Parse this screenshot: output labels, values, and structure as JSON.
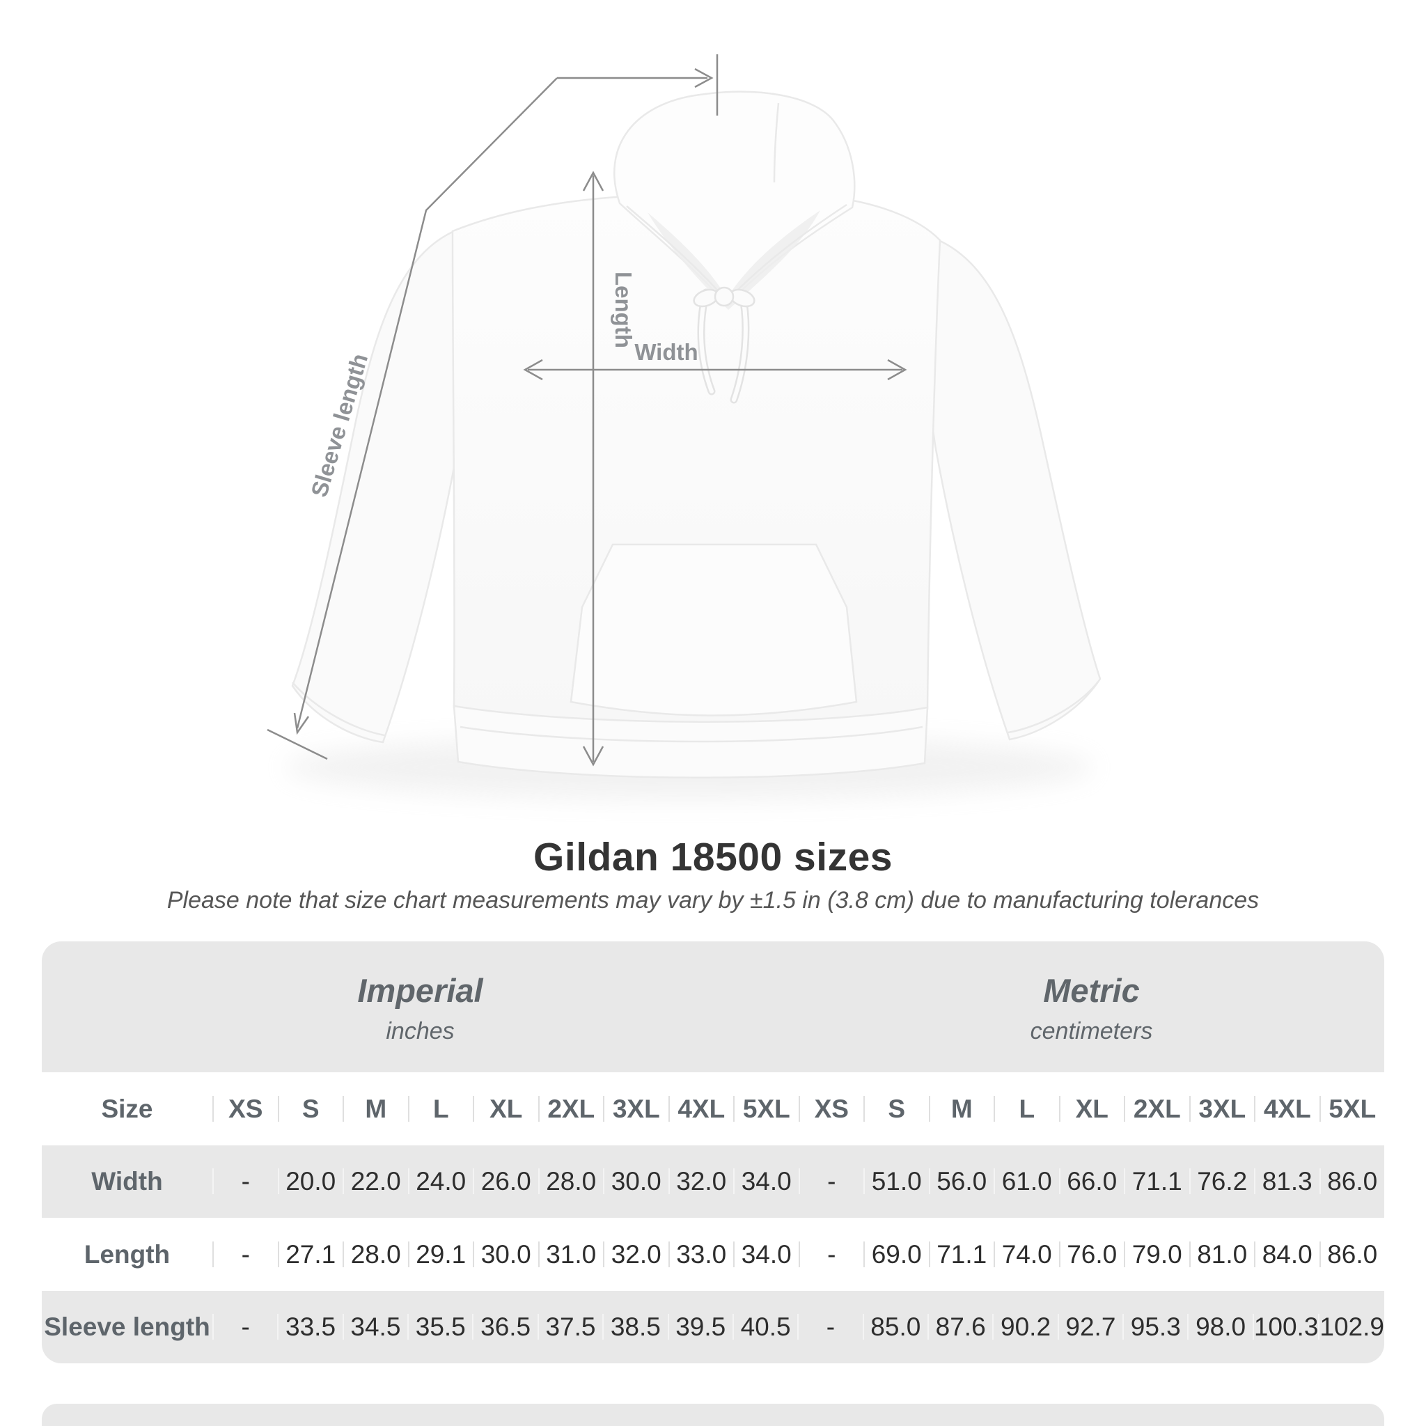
{
  "heading": {
    "title": "Gildan 18500 sizes",
    "subtitle": "Please note that size chart measurements may vary by ±1.5 in (3.8 cm) due to manufacturing tolerances"
  },
  "diagram": {
    "length_label": "Length",
    "width_label": "Width",
    "sleeve_length_label": "Sleeve length",
    "garment": "white pullover hoodie, front view"
  },
  "colors": {
    "measurement_line_gray": "#8c8c8c",
    "measurement_label_gray": "#8f9296",
    "table_band_gray": "#e8e8e8",
    "header_text_gray": "#5e656b",
    "value_text": "#2d2d2d",
    "title_text": "#343434"
  },
  "table": {
    "size_column_label": "Size",
    "unit_groups": [
      {
        "name": "Imperial",
        "unit": "inches"
      },
      {
        "name": "Metric",
        "unit": "centimeters"
      }
    ],
    "sizes": [
      "XS",
      "S",
      "M",
      "L",
      "XL",
      "2XL",
      "3XL",
      "4XL",
      "5XL"
    ],
    "rows": [
      {
        "label": "Width",
        "imperial": [
          "-",
          "20.0",
          "22.0",
          "24.0",
          "26.0",
          "28.0",
          "30.0",
          "32.0",
          "34.0"
        ],
        "metric": [
          "-",
          "51.0",
          "56.0",
          "61.0",
          "66.0",
          "71.1",
          "76.2",
          "81.3",
          "86.0"
        ]
      },
      {
        "label": "Length",
        "imperial": [
          "-",
          "27.1",
          "28.0",
          "29.1",
          "30.0",
          "31.0",
          "32.0",
          "33.0",
          "34.0"
        ],
        "metric": [
          "-",
          "69.0",
          "71.1",
          "74.0",
          "76.0",
          "79.0",
          "81.0",
          "84.0",
          "86.0"
        ]
      },
      {
        "label": "Sleeve length",
        "imperial": [
          "-",
          "33.5",
          "34.5",
          "35.5",
          "36.5",
          "37.5",
          "38.5",
          "39.5",
          "40.5"
        ],
        "metric": [
          "-",
          "85.0",
          "87.6",
          "90.2",
          "92.7",
          "95.3",
          "98.0",
          "100.3",
          "102.9"
        ]
      }
    ]
  },
  "chart_data": {
    "type": "table",
    "title": "Gildan 18500 sizes",
    "columns": [
      "XS",
      "S",
      "M",
      "L",
      "XL",
      "2XL",
      "3XL",
      "4XL",
      "5XL"
    ],
    "unit_groups": [
      "inches",
      "centimeters"
    ],
    "rows": [
      {
        "label": "Width (in)",
        "values": [
          null,
          20.0,
          22.0,
          24.0,
          26.0,
          28.0,
          30.0,
          32.0,
          34.0
        ]
      },
      {
        "label": "Length (in)",
        "values": [
          null,
          27.1,
          28.0,
          29.1,
          30.0,
          31.0,
          32.0,
          33.0,
          34.0
        ]
      },
      {
        "label": "Sleeve length (in)",
        "values": [
          null,
          33.5,
          34.5,
          35.5,
          36.5,
          37.5,
          38.5,
          39.5,
          40.5
        ]
      },
      {
        "label": "Width (cm)",
        "values": [
          null,
          51.0,
          56.0,
          61.0,
          66.0,
          71.1,
          76.2,
          81.3,
          86.0
        ]
      },
      {
        "label": "Length (cm)",
        "values": [
          null,
          69.0,
          71.1,
          74.0,
          76.0,
          79.0,
          81.0,
          84.0,
          86.0
        ]
      },
      {
        "label": "Sleeve length (cm)",
        "values": [
          null,
          85.0,
          87.6,
          90.2,
          92.7,
          95.3,
          98.0,
          100.3,
          102.9
        ]
      }
    ]
  }
}
